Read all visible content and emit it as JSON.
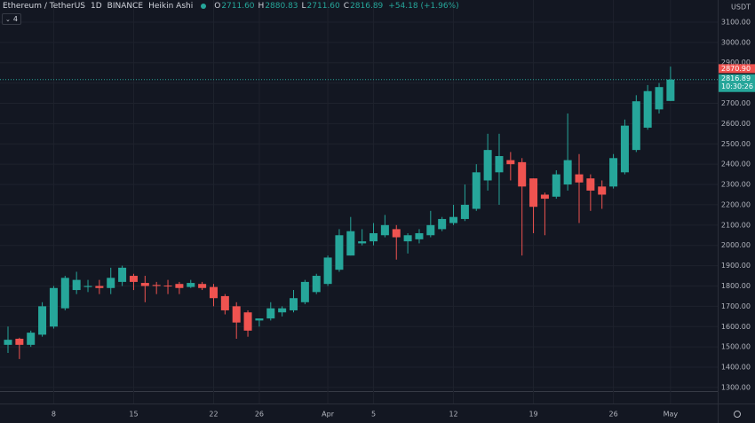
{
  "chart_data": {
    "type": "candlestick",
    "symbol": "Ethereum / TetherUS",
    "interval": "1D",
    "exchange": "BINANCE",
    "style": "Heikin Ashi",
    "indicator_count": 4,
    "ohlc_header": [
      {
        "key": "O",
        "value": 2711.6,
        "label": "2711.60"
      },
      {
        "key": "H",
        "value": 2880.83,
        "label": "2880.83"
      },
      {
        "key": "L",
        "value": 2711.6,
        "label": "2711.60"
      },
      {
        "key": "C",
        "value": 2816.89,
        "label": "2816.89"
      }
    ],
    "change_label": "+54.18 (+1.96%)",
    "currency": "USDT",
    "last_price": {
      "value": 2816.89,
      "label": "2816.89"
    },
    "countdown": "10:30:26",
    "high_tag": {
      "value": 2870.9,
      "label": "2870.90"
    },
    "up_color": "#26a69a",
    "down_color": "#ef5350",
    "categories": [
      "03-04",
      "03-05",
      "03-06",
      "03-07",
      "03-08",
      "03-09",
      "03-10",
      "03-11",
      "03-12",
      "03-13",
      "03-14",
      "03-15",
      "03-16",
      "03-17",
      "03-18",
      "03-19",
      "03-20",
      "03-21",
      "03-22",
      "03-23",
      "03-24",
      "03-25",
      "03-26",
      "03-27",
      "03-28",
      "03-29",
      "03-30",
      "03-31",
      "04-01",
      "04-02",
      "04-03",
      "04-04",
      "04-05",
      "04-06",
      "04-07",
      "04-08",
      "04-09",
      "04-10",
      "04-11",
      "04-12",
      "04-13",
      "04-14",
      "04-15",
      "04-16",
      "04-17",
      "04-18",
      "04-19",
      "04-20",
      "04-21",
      "04-22",
      "04-23",
      "04-24",
      "04-25",
      "04-26",
      "04-27",
      "04-28",
      "04-29",
      "04-30",
      "05-01"
    ],
    "open": [
      1510,
      1540,
      1510,
      1560,
      1600,
      1690,
      1780,
      1795,
      1800,
      1790,
      1820,
      1850,
      1815,
      1805,
      1802,
      1810,
      1795,
      1810,
      1795,
      1750,
      1700,
      1670,
      1630,
      1640,
      1670,
      1680,
      1720,
      1770,
      1810,
      1880,
      1950,
      2010,
      2020,
      2050,
      2080,
      2020,
      2030,
      2050,
      2080,
      2110,
      2130,
      2180,
      2320,
      2360,
      2420,
      2410,
      2330,
      2250,
      2240,
      2300,
      2350,
      2330,
      2290,
      2290,
      2360,
      2470,
      2580,
      2670,
      2711.6
    ],
    "high": [
      1600,
      1545,
      1580,
      1720,
      1800,
      1850,
      1870,
      1830,
      1830,
      1890,
      1900,
      1860,
      1850,
      1820,
      1830,
      1820,
      1830,
      1820,
      1810,
      1760,
      1720,
      1680,
      1640,
      1720,
      1700,
      1780,
      1830,
      1860,
      1950,
      2080,
      2140,
      2080,
      2110,
      2150,
      2100,
      2060,
      2080,
      2170,
      2140,
      2200,
      2300,
      2400,
      2550,
      2550,
      2460,
      2430,
      2330,
      2260,
      2370,
      2650,
      2450,
      2350,
      2320,
      2450,
      2620,
      2740,
      2790,
      2800,
      2880.83
    ],
    "low": [
      1470,
      1440,
      1500,
      1550,
      1590,
      1680,
      1760,
      1770,
      1760,
      1760,
      1800,
      1780,
      1720,
      1760,
      1760,
      1760,
      1790,
      1780,
      1700,
      1660,
      1540,
      1550,
      1600,
      1630,
      1650,
      1670,
      1710,
      1760,
      1800,
      1870,
      1950,
      2000,
      2000,
      2040,
      1930,
      1960,
      2010,
      2040,
      2070,
      2100,
      2120,
      2170,
      2270,
      2200,
      2320,
      1950,
      2060,
      2050,
      2230,
      2270,
      2110,
      2170,
      2180,
      2280,
      2350,
      2460,
      2570,
      2650,
      2711.6
    ],
    "close": [
      1535,
      1510,
      1570,
      1700,
      1790,
      1840,
      1830,
      1800,
      1790,
      1840,
      1890,
      1820,
      1800,
      1800,
      1800,
      1790,
      1815,
      1790,
      1740,
      1680,
      1620,
      1580,
      1640,
      1690,
      1690,
      1740,
      1820,
      1850,
      1940,
      2050,
      2070,
      2020,
      2060,
      2100,
      2040,
      2050,
      2060,
      2100,
      2130,
      2140,
      2200,
      2360,
      2470,
      2440,
      2400,
      2290,
      2190,
      2230,
      2350,
      2420,
      2310,
      2270,
      2250,
      2430,
      2590,
      2710,
      2760,
      2780,
      2816.89
    ],
    "ylim": [
      1221,
      3209
    ],
    "yticks": [
      {
        "value": 1300,
        "label": "1300.00"
      },
      {
        "value": 1400,
        "label": "1400.00"
      },
      {
        "value": 1500,
        "label": "1500.00"
      },
      {
        "value": 1600,
        "label": "1600.00"
      },
      {
        "value": 1700,
        "label": "1700.00"
      },
      {
        "value": 1800,
        "label": "1800.00"
      },
      {
        "value": 1900,
        "label": "1900.00"
      },
      {
        "value": 2000,
        "label": "2000.00"
      },
      {
        "value": 2100,
        "label": "2100.00"
      },
      {
        "value": 2200,
        "label": "2200.00"
      },
      {
        "value": 2300,
        "label": "2300.00"
      },
      {
        "value": 2400,
        "label": "2400.00"
      },
      {
        "value": 2500,
        "label": "2500.00"
      },
      {
        "value": 2600,
        "label": "2600.00"
      },
      {
        "value": 2700,
        "label": "2700.00"
      },
      {
        "value": 2800,
        "label": "2800.00"
      },
      {
        "value": 2900,
        "label": "2900.00"
      },
      {
        "value": 3000,
        "label": "3000.00"
      },
      {
        "value": 3100,
        "label": "3100.00"
      }
    ],
    "xticks": [
      {
        "value": "03-08",
        "label": "8"
      },
      {
        "value": "03-15",
        "label": "15"
      },
      {
        "value": "03-22",
        "label": "22"
      },
      {
        "value": "03-26",
        "label": "26"
      },
      {
        "value": "04-01",
        "label": "Apr"
      },
      {
        "value": "04-05",
        "label": "5"
      },
      {
        "value": "04-12",
        "label": "12"
      },
      {
        "value": "04-19",
        "label": "19"
      },
      {
        "value": "04-26",
        "label": "26"
      },
      {
        "value": "05-01",
        "label": "May"
      }
    ],
    "grid": true
  }
}
